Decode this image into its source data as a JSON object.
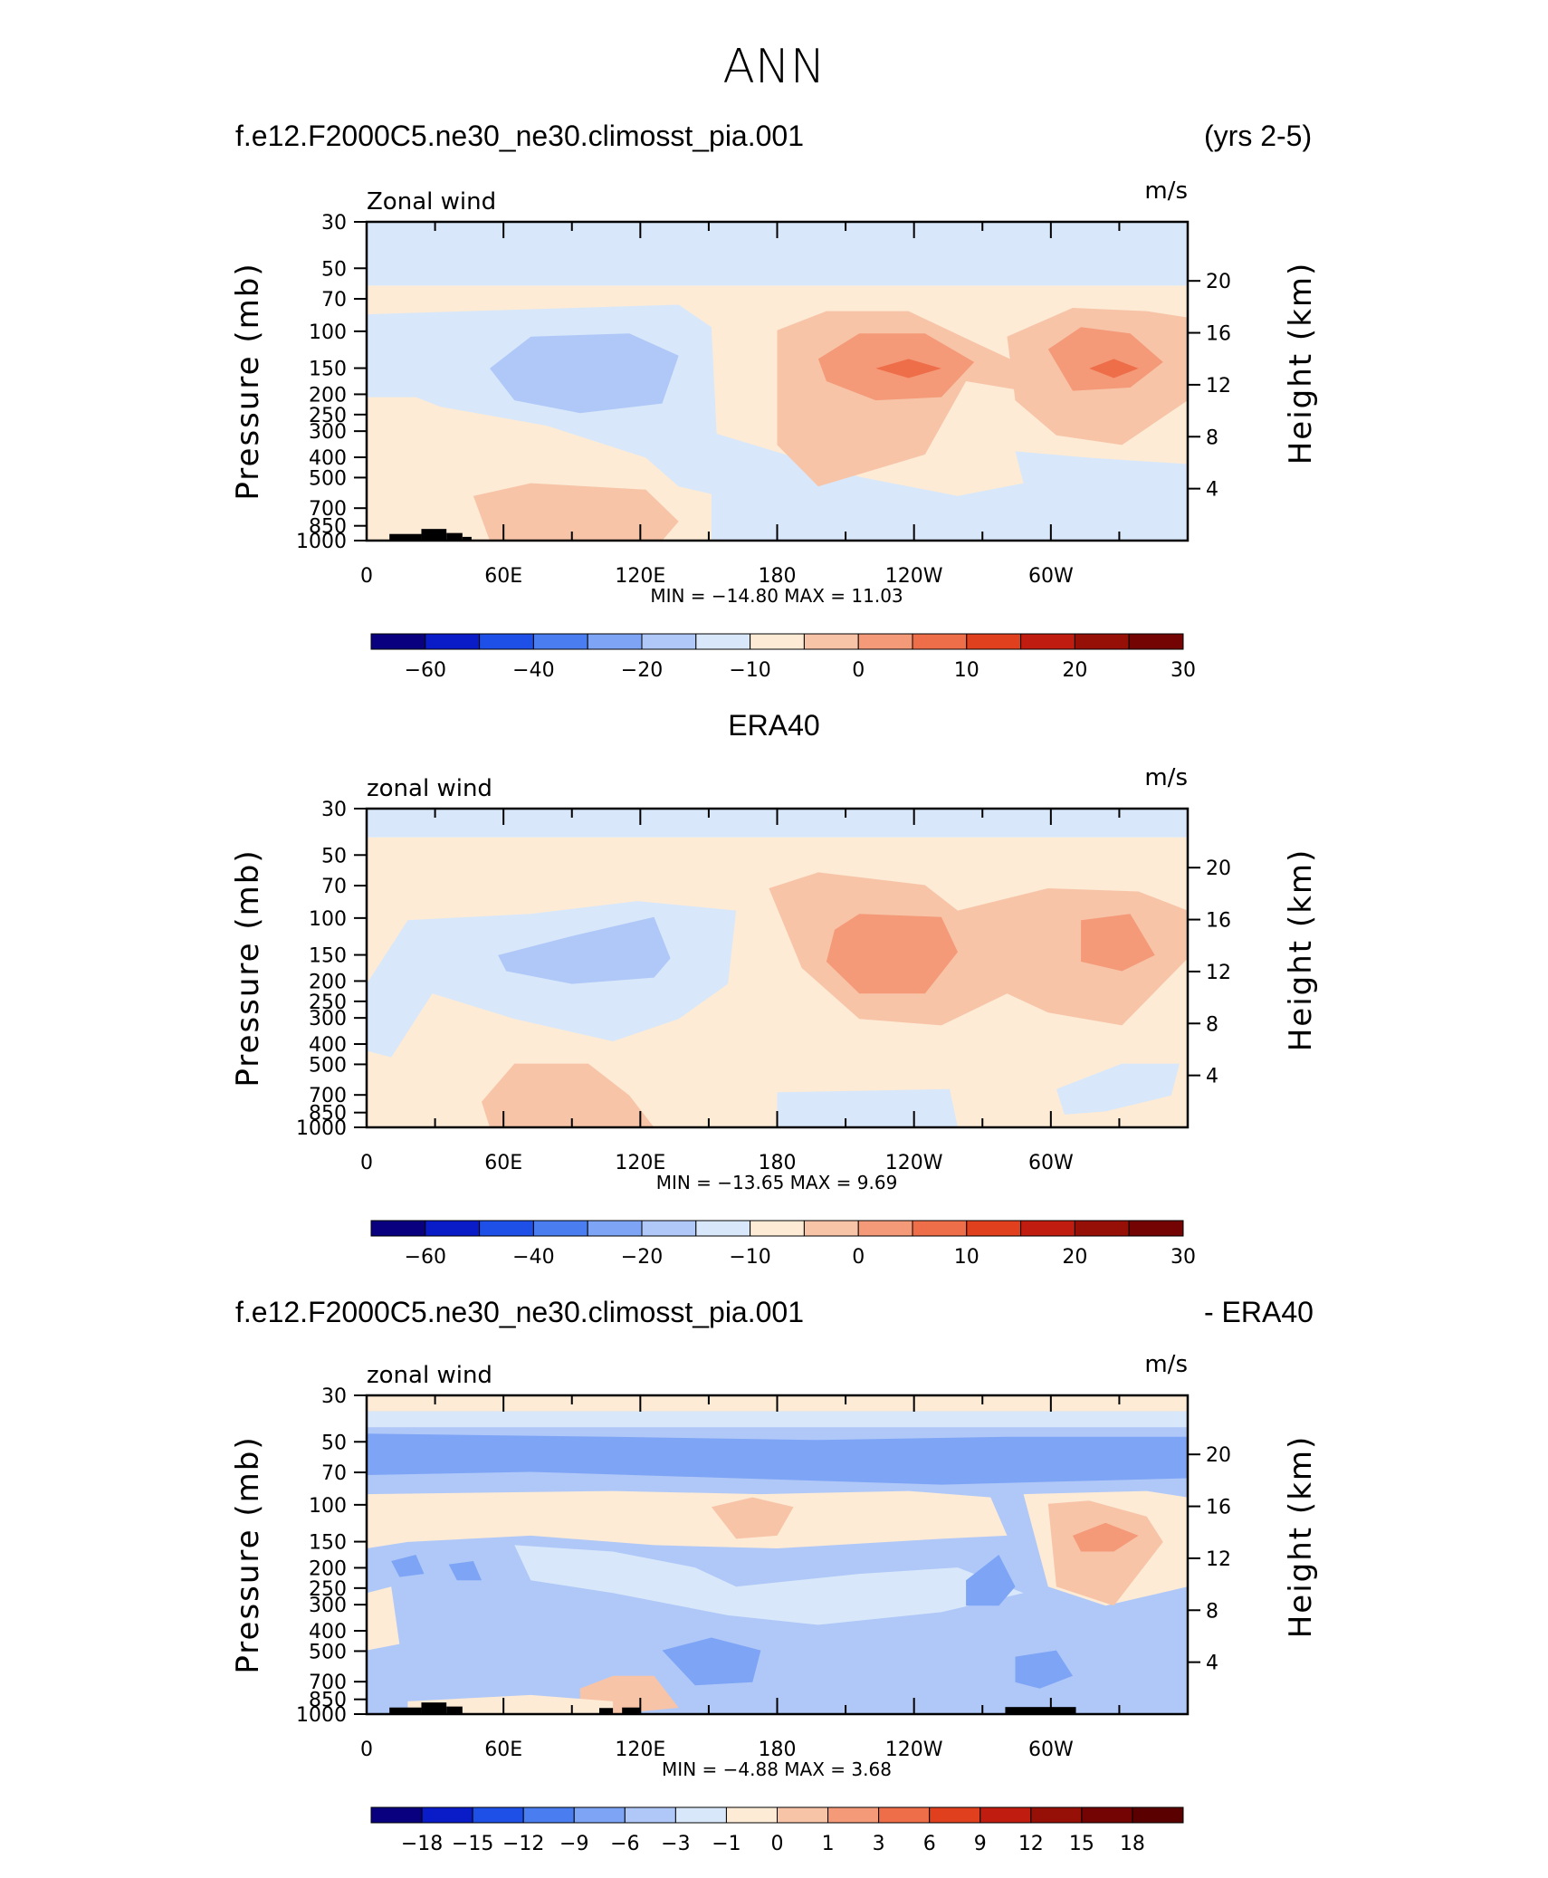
{
  "figure": {
    "title": "ANN",
    "panel1_case": "f.e12.F2000C5.ne30_ne30.climosst_pia.001",
    "panel1_years": "(yrs 2-5)",
    "panel2_title": "ERA40",
    "panel3_case": "f.e12.F2000C5.ne30_ne30.climosst_pia.001",
    "panel3_suffix": "- ERA40"
  },
  "chart_data": [
    {
      "type": "heatmap",
      "id": "model",
      "variable_label": "Zonal wind",
      "units": "m/s",
      "ylabel": "Pressure (mb)",
      "ylabel2": "Height (km)",
      "pressure_ticks": [
        "30",
        "50",
        "70",
        "100",
        "150",
        "200",
        "250",
        "300",
        "400",
        "500",
        "700",
        "850",
        "1000"
      ],
      "height_ticks": [
        "20",
        "16",
        "12",
        "8",
        "4"
      ],
      "lon_ticks": [
        "0",
        "60E",
        "120E",
        "180",
        "120W",
        "60W"
      ],
      "stats_text": "MIN =  −14.80   MAX =    11.03",
      "min": -14.8,
      "max": 11.03,
      "colorbar_labels": [
        "−60",
        "−40",
        "−20",
        "−10",
        "0",
        "10",
        "20",
        "30"
      ],
      "colorbar_colors": [
        "#08007e",
        "#0a1cc8",
        "#1e4fe6",
        "#4a7ef0",
        "#7ea4f5",
        "#b0c8f8",
        "#d8e8fa",
        "#fdebd5",
        "#f8c4a8",
        "#f49a78",
        "#ef6e4a",
        "#e0401e",
        "#c01d10",
        "#971007",
        "#740404"
      ]
    },
    {
      "type": "heatmap",
      "id": "obs",
      "variable_label": "zonal wind",
      "units": "m/s",
      "ylabel": "Pressure (mb)",
      "ylabel2": "Height (km)",
      "pressure_ticks": [
        "30",
        "50",
        "70",
        "100",
        "150",
        "200",
        "250",
        "300",
        "400",
        "500",
        "700",
        "850",
        "1000"
      ],
      "height_ticks": [
        "20",
        "16",
        "12",
        "8",
        "4"
      ],
      "lon_ticks": [
        "0",
        "60E",
        "120E",
        "180",
        "120W",
        "60W"
      ],
      "stats_text": "MIN =  −13.65   MAX =     9.69",
      "min": -13.65,
      "max": 9.69,
      "colorbar_labels": [
        "−60",
        "−40",
        "−20",
        "−10",
        "0",
        "10",
        "20",
        "30"
      ],
      "colorbar_colors": [
        "#08007e",
        "#0a1cc8",
        "#1e4fe6",
        "#4a7ef0",
        "#7ea4f5",
        "#b0c8f8",
        "#d8e8fa",
        "#fdebd5",
        "#f8c4a8",
        "#f49a78",
        "#ef6e4a",
        "#e0401e",
        "#c01d10",
        "#971007",
        "#740404"
      ]
    },
    {
      "type": "heatmap",
      "id": "diff",
      "variable_label": "zonal wind",
      "units": "m/s",
      "ylabel": "Pressure (mb)",
      "ylabel2": "Height (km)",
      "pressure_ticks": [
        "30",
        "50",
        "70",
        "100",
        "150",
        "200",
        "250",
        "300",
        "400",
        "500",
        "700",
        "850",
        "1000"
      ],
      "height_ticks": [
        "20",
        "16",
        "12",
        "8",
        "4"
      ],
      "lon_ticks": [
        "0",
        "60E",
        "120E",
        "180",
        "120W",
        "60W"
      ],
      "stats_text": "MIN =    −4.88   MAX =     3.68",
      "min": -4.88,
      "max": 3.68,
      "colorbar_labels": [
        "−18",
        "−15",
        "−12",
        "−9",
        "−6",
        "−3",
        "−1",
        "0",
        "1",
        "3",
        "6",
        "9",
        "12",
        "15",
        "18"
      ],
      "colorbar_colors": [
        "#08007e",
        "#0a1cc8",
        "#1e4fe6",
        "#4a7ef0",
        "#7ea4f5",
        "#b0c8f8",
        "#d8e8fa",
        "#fdebd5",
        "#f8c4a8",
        "#f49a78",
        "#ef6e4a",
        "#e0401e",
        "#c01d10",
        "#971007",
        "#740404",
        "#5a0000"
      ]
    }
  ]
}
